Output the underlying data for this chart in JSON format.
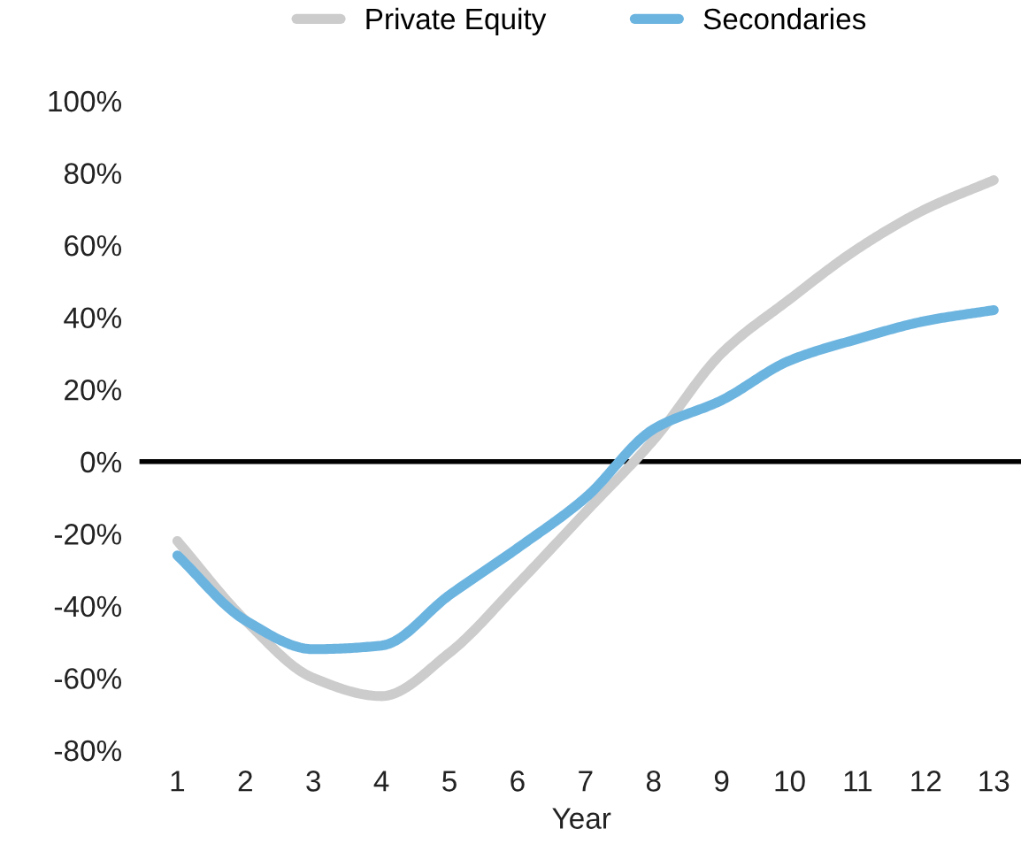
{
  "chart_data": {
    "type": "line",
    "xlabel": "Year",
    "x": [
      1,
      2,
      3,
      4,
      5,
      6,
      7,
      8,
      9,
      10,
      11,
      12,
      13
    ],
    "series": [
      {
        "name": "Private Equity",
        "color": "#cccccc",
        "values": [
          -22,
          -44,
          -60,
          -65,
          -53,
          -34,
          -14,
          6,
          30,
          45,
          59,
          70,
          78
        ]
      },
      {
        "name": "Secondaries",
        "color": "#6cb4e0",
        "values": [
          -26,
          -44,
          -52,
          -51,
          -37,
          -24,
          -10,
          9,
          17,
          28,
          34,
          39,
          42
        ]
      }
    ],
    "xlim": [
      0.48,
      13.4
    ],
    "xticks": [
      1,
      2,
      3,
      4,
      5,
      6,
      7,
      8,
      9,
      10,
      11,
      12,
      13
    ],
    "ylim": [
      -80,
      100
    ],
    "yticks": [
      {
        "value": -80,
        "label": "-80%"
      },
      {
        "value": -60,
        "label": "-60%"
      },
      {
        "value": -40,
        "label": "-40%"
      },
      {
        "value": -20,
        "label": "-20%"
      },
      {
        "value": 0,
        "label": "0%"
      },
      {
        "value": 20,
        "label": "20%"
      },
      {
        "value": 40,
        "label": "40%"
      },
      {
        "value": 60,
        "label": "60%"
      },
      {
        "value": 80,
        "label": "80%"
      },
      {
        "value": 100,
        "label": "100%"
      }
    ],
    "ref_lines": [
      {
        "axis": "y",
        "value": 0,
        "color": "#000000"
      }
    ],
    "grid": false,
    "legend": "top",
    "marker": "none",
    "line_style": "solid"
  }
}
